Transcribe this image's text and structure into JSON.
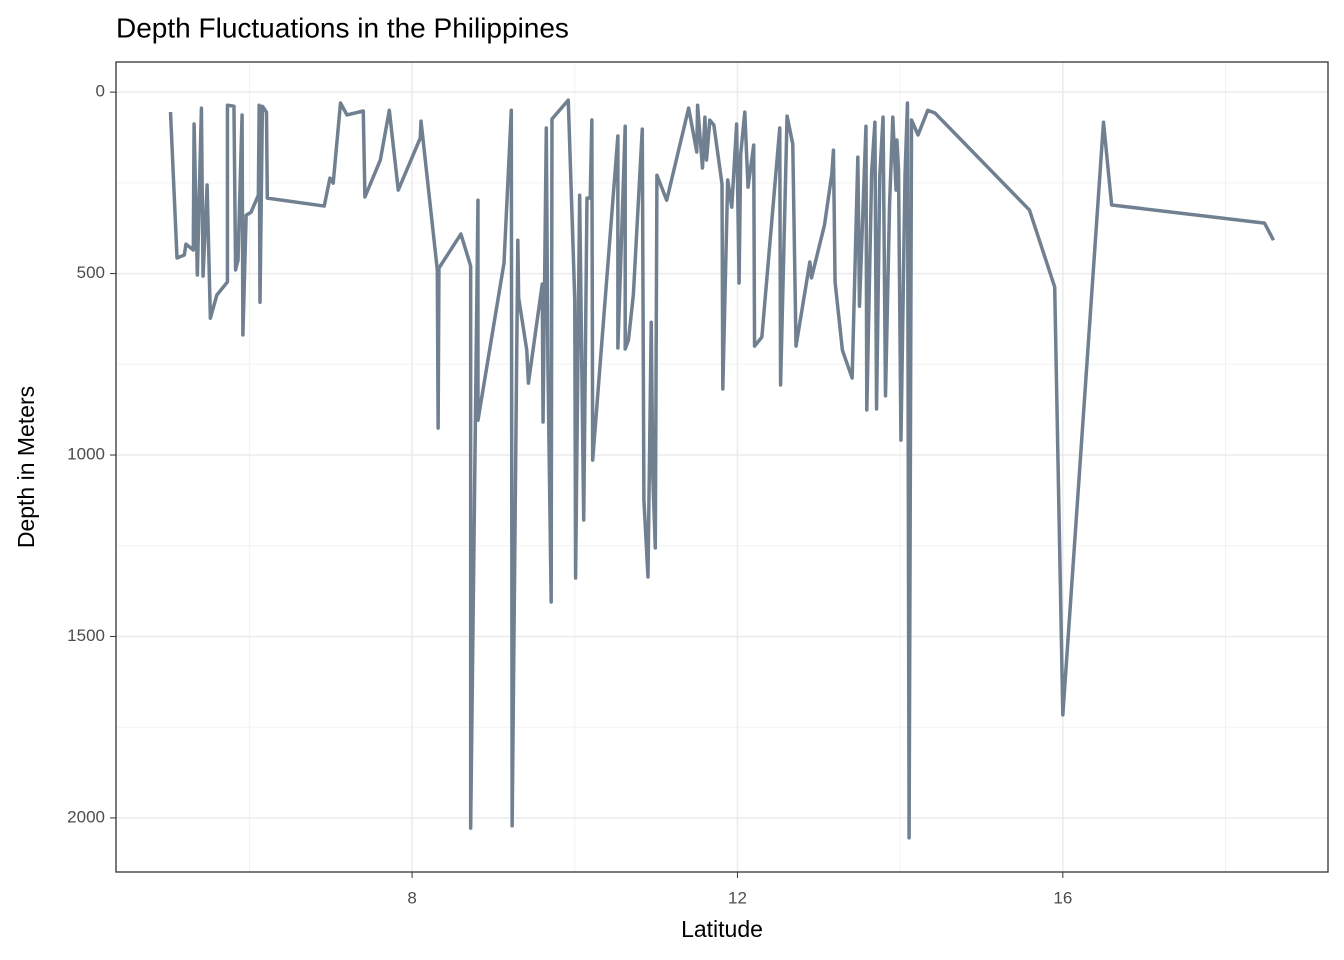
{
  "chart_data": {
    "type": "line",
    "title": "Depth Fluctuations in the Philippines",
    "xlabel": "Latitude",
    "ylabel": "Depth in Meters",
    "x": [
      5.03,
      5.11,
      5.2,
      5.22,
      5.31,
      5.32,
      5.36,
      5.41,
      5.43,
      5.48,
      5.52,
      5.6,
      5.73,
      5.73,
      5.81,
      5.83,
      5.86,
      5.91,
      5.92,
      5.96,
      6.02,
      6.11,
      6.12,
      6.13,
      6.16,
      6.21,
      6.22,
      6.92,
      6.99,
      7.03,
      7.12,
      7.2,
      7.4,
      7.42,
      7.61,
      7.72,
      7.83,
      8.1,
      8.11,
      8.31,
      8.32,
      8.33,
      8.6,
      8.72,
      8.72,
      8.81,
      8.81,
      9.13,
      9.22,
      9.23,
      9.3,
      9.31,
      9.41,
      9.43,
      9.6,
      9.61,
      9.65,
      9.67,
      9.71,
      9.72,
      9.92,
      10.0,
      10.01,
      10.06,
      10.11,
      10.15,
      10.19,
      10.21,
      10.22,
      10.53,
      10.53,
      10.62,
      10.62,
      10.66,
      10.72,
      10.83,
      10.85,
      10.9,
      10.94,
      10.96,
      10.99,
      11.01,
      11.13,
      11.4,
      11.5,
      11.51,
      11.57,
      11.6,
      11.62,
      11.66,
      11.71,
      11.81,
      11.82,
      11.88,
      11.93,
      11.99,
      12.02,
      12.04,
      12.09,
      12.13,
      12.2,
      12.21,
      12.3,
      12.52,
      12.53,
      12.61,
      12.68,
      12.72,
      12.89,
      12.91,
      13.07,
      13.16,
      13.18,
      13.2,
      13.29,
      13.41,
      13.48,
      13.5,
      13.58,
      13.59,
      13.65,
      13.69,
      13.71,
      13.75,
      13.79,
      13.82,
      13.87,
      13.91,
      13.95,
      13.96,
      13.98,
      14.01,
      14.06,
      14.09,
      14.11,
      14.14,
      14.22,
      14.34,
      14.43,
      15.59,
      15.9,
      16.0,
      16.5,
      16.6,
      18.48,
      18.59
    ],
    "series": [
      {
        "name": "Depth",
        "color": "#708090",
        "values": [
          55,
          457,
          449,
          419,
          435,
          88,
          504,
          44,
          507,
          256,
          623,
          559,
          523,
          36,
          39,
          490,
          463,
          63,
          669,
          339,
          331,
          284,
          36,
          579,
          39,
          55,
          292,
          314,
          237,
          251,
          30,
          63,
          52,
          289,
          187,
          50,
          270,
          127,
          80,
          490,
          926,
          485,
          391,
          479,
          2028,
          298,
          904,
          471,
          50,
          2022,
          408,
          567,
          711,
          802,
          529,
          909,
          99,
          752,
          1405,
          74,
          22,
          573,
          1339,
          284,
          1179,
          292,
          292,
          77,
          1014,
          121,
          705,
          94,
          708,
          683,
          559,
          102,
          1124,
          1336,
          634,
          1063,
          1256,
          229,
          298,
          44,
          165,
          36,
          209,
          69,
          187,
          77,
          91,
          253,
          818,
          242,
          317,
          88,
          526,
          171,
          55,
          262,
          146,
          700,
          675,
          99,
          807,
          66,
          143,
          700,
          468,
          512,
          366,
          226,
          160,
          523,
          711,
          788,
          179,
          590,
          94,
          876,
          220,
          83,
          873,
          229,
          69,
          837,
          309,
          69,
          270,
          132,
          215,
          959,
          229,
          30,
          2055,
          77,
          118,
          50,
          58,
          325,
          537,
          1716,
          83,
          311,
          361,
          408
        ]
      }
    ],
    "xlim": [
      4.36,
      19.26
    ],
    "xticks": [
      8,
      12,
      16
    ],
    "xminor": [
      6,
      10,
      14,
      18
    ],
    "ylim": [
      -83,
      2149
    ],
    "yticks": [
      0,
      500,
      1000,
      1500,
      2000
    ],
    "yminor": [
      250,
      750,
      1250,
      1750
    ],
    "y_reversed": true,
    "grid": true
  }
}
